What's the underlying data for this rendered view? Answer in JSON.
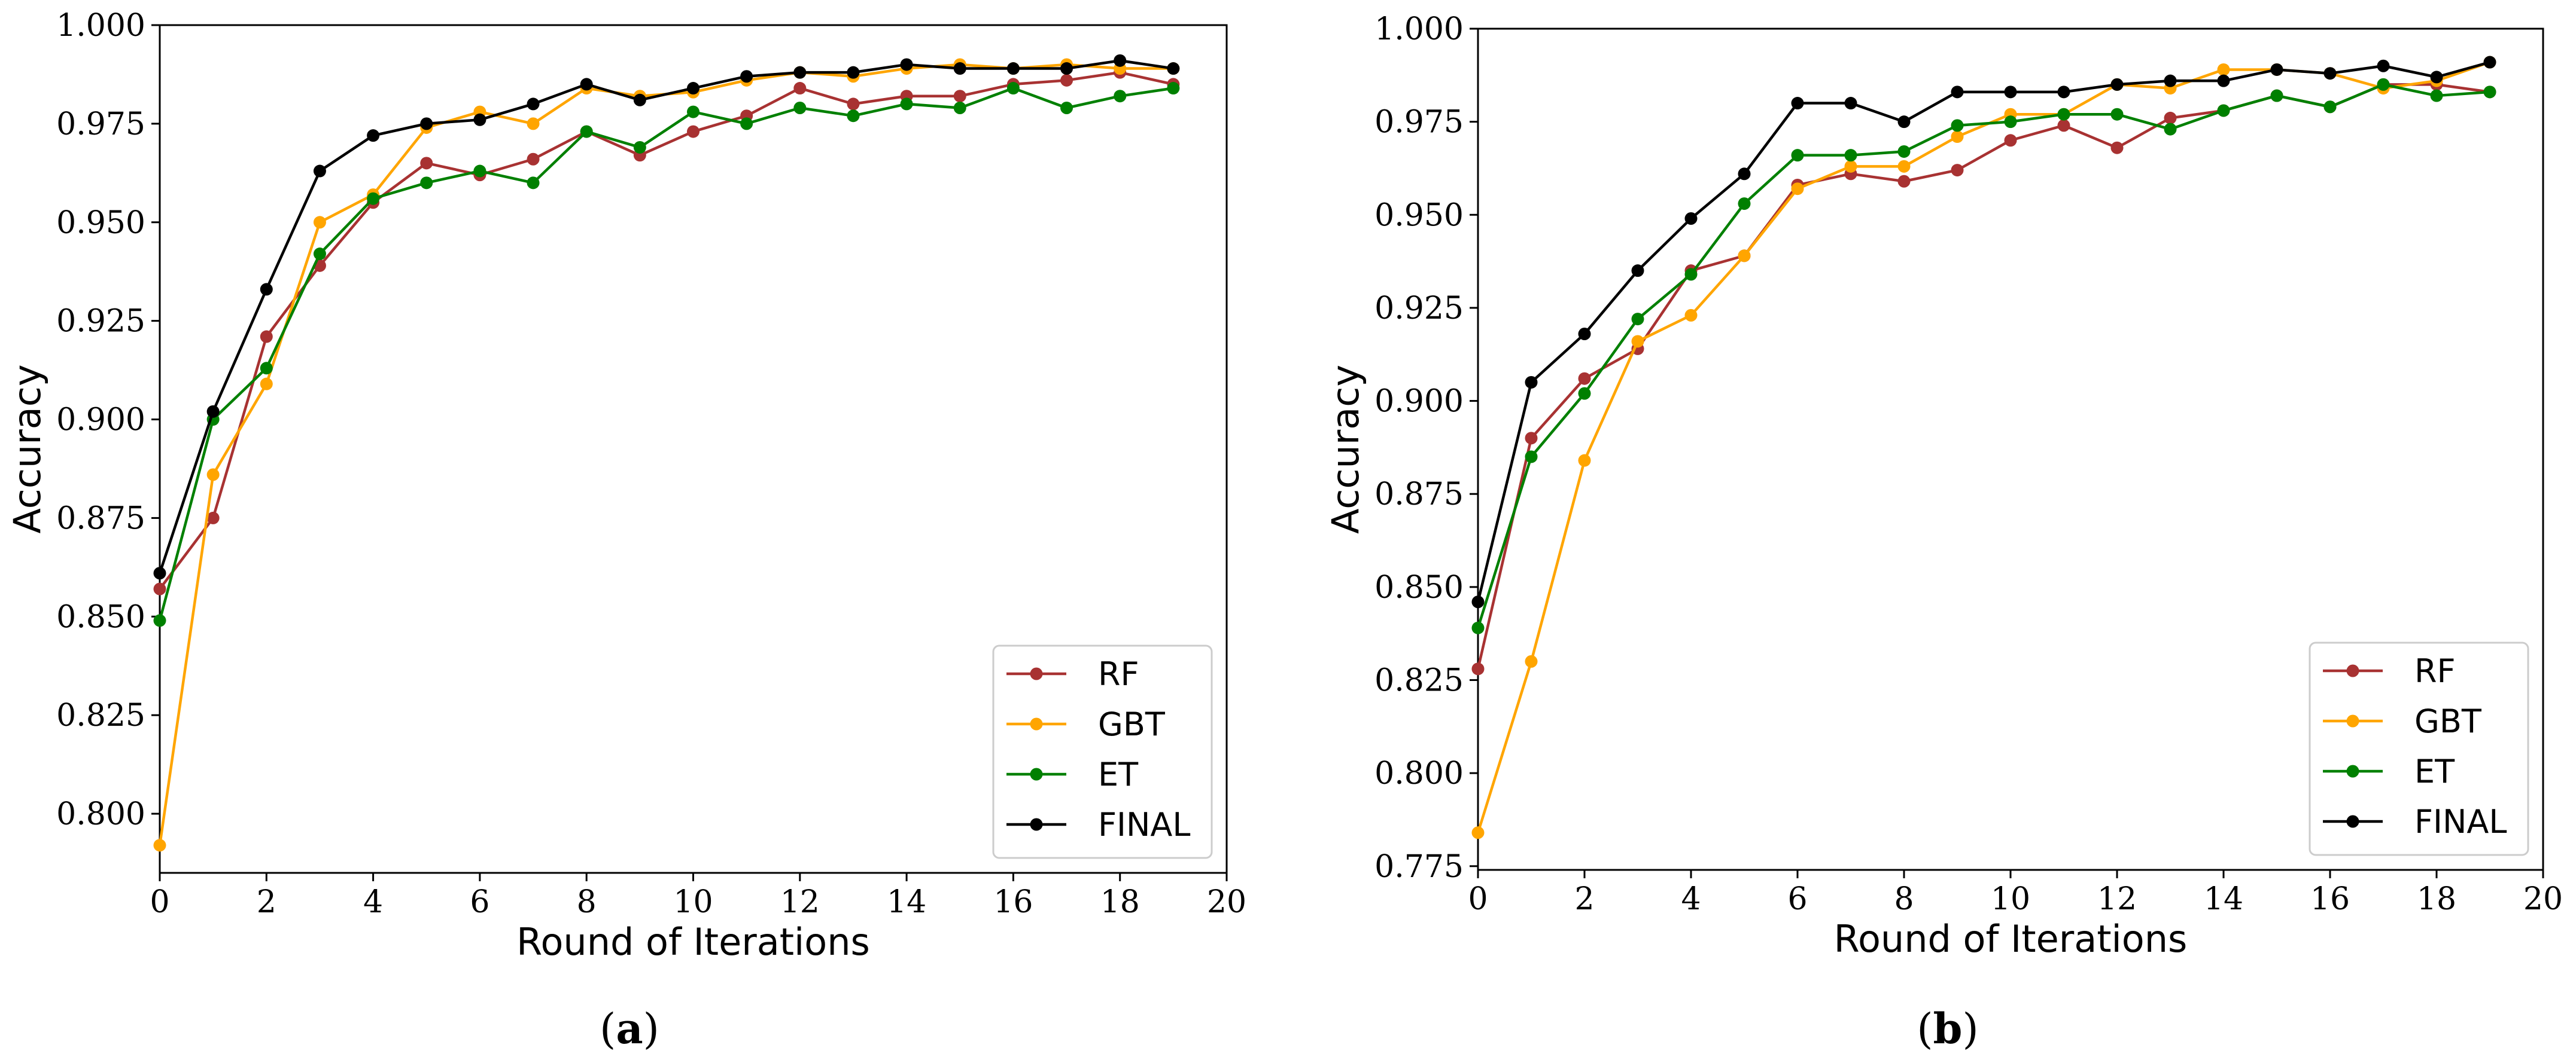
{
  "chart_data": [
    {
      "type": "line",
      "caption_open": "(",
      "caption_letter": "a",
      "caption_close": ")",
      "xlabel": "Round of Iterations",
      "ylabel": "Accuracy",
      "xlim": [
        0,
        20
      ],
      "ylim": [
        0.785,
        1.0
      ],
      "xticks": [
        0,
        2,
        4,
        6,
        8,
        10,
        12,
        14,
        16,
        18,
        20
      ],
      "xtick_labels": [
        "0",
        "2",
        "4",
        "6",
        "8",
        "10",
        "12",
        "14",
        "16",
        "18",
        "20"
      ],
      "yticks": [
        0.8,
        0.825,
        0.85,
        0.875,
        0.9,
        0.925,
        0.95,
        0.975,
        1.0
      ],
      "ytick_labels": [
        "0.800",
        "0.825",
        "0.850",
        "0.875",
        "0.900",
        "0.925",
        "0.950",
        "0.975",
        "1.000"
      ],
      "legend_position": "lower-right",
      "x": [
        0,
        1,
        2,
        3,
        4,
        5,
        6,
        7,
        8,
        9,
        10,
        11,
        12,
        13,
        14,
        15,
        16,
        17,
        18,
        19
      ],
      "series": [
        {
          "name": "RF",
          "color": "#a83232",
          "values": [
            0.857,
            0.875,
            0.921,
            0.939,
            0.955,
            0.965,
            0.962,
            0.966,
            0.973,
            0.967,
            0.973,
            0.977,
            0.984,
            0.98,
            0.982,
            0.982,
            0.985,
            0.986,
            0.988,
            0.985
          ]
        },
        {
          "name": "GBT",
          "color": "#ffa500",
          "values": [
            0.792,
            0.886,
            0.909,
            0.95,
            0.957,
            0.974,
            0.978,
            0.975,
            0.984,
            0.982,
            0.983,
            0.986,
            0.988,
            0.987,
            0.989,
            0.99,
            0.989,
            0.99,
            0.989,
            0.989
          ]
        },
        {
          "name": "ET",
          "color": "#008000",
          "values": [
            0.849,
            0.9,
            0.913,
            0.942,
            0.956,
            0.96,
            0.963,
            0.96,
            0.973,
            0.969,
            0.978,
            0.975,
            0.979,
            0.977,
            0.98,
            0.979,
            0.984,
            0.979,
            0.982,
            0.984
          ]
        },
        {
          "name": "FINAL",
          "color": "#000000",
          "values": [
            0.861,
            0.902,
            0.933,
            0.963,
            0.972,
            0.975,
            0.976,
            0.98,
            0.985,
            0.981,
            0.984,
            0.987,
            0.988,
            0.988,
            0.99,
            0.989,
            0.989,
            0.989,
            0.991,
            0.989
          ]
        }
      ]
    },
    {
      "type": "line",
      "caption_open": "(",
      "caption_letter": "b",
      "caption_close": ")",
      "xlabel": "Round of Iterations",
      "ylabel": "Accuracy",
      "xlim": [
        0,
        20
      ],
      "ylim": [
        0.774,
        1.0
      ],
      "xticks": [
        0,
        2,
        4,
        6,
        8,
        10,
        12,
        14,
        16,
        18,
        20
      ],
      "xtick_labels": [
        "0",
        "2",
        "4",
        "6",
        "8",
        "10",
        "12",
        "14",
        "16",
        "18",
        "20"
      ],
      "yticks": [
        0.775,
        0.8,
        0.825,
        0.85,
        0.875,
        0.9,
        0.925,
        0.95,
        0.975,
        1.0
      ],
      "ytick_labels": [
        "0.775",
        "0.800",
        "0.825",
        "0.850",
        "0.875",
        "0.900",
        "0.925",
        "0.950",
        "0.975",
        "1.000"
      ],
      "legend_position": "lower-right",
      "x": [
        0,
        1,
        2,
        3,
        4,
        5,
        6,
        7,
        8,
        9,
        10,
        11,
        12,
        13,
        14,
        15,
        16,
        17,
        18,
        19
      ],
      "series": [
        {
          "name": "RF",
          "color": "#a83232",
          "values": [
            0.828,
            0.89,
            0.906,
            0.914,
            0.935,
            0.939,
            0.958,
            0.961,
            0.959,
            0.962,
            0.97,
            0.974,
            0.968,
            0.976,
            0.978,
            0.982,
            0.979,
            0.985,
            0.985,
            0.983
          ]
        },
        {
          "name": "GBT",
          "color": "#ffa500",
          "values": [
            0.784,
            0.83,
            0.884,
            0.916,
            0.923,
            0.939,
            0.957,
            0.963,
            0.963,
            0.971,
            0.977,
            0.977,
            0.985,
            0.984,
            0.989,
            0.989,
            0.988,
            0.984,
            0.986,
            0.991
          ]
        },
        {
          "name": "ET",
          "color": "#008000",
          "values": [
            0.839,
            0.885,
            0.902,
            0.922,
            0.934,
            0.953,
            0.966,
            0.966,
            0.967,
            0.974,
            0.975,
            0.977,
            0.977,
            0.973,
            0.978,
            0.982,
            0.979,
            0.985,
            0.982,
            0.983
          ]
        },
        {
          "name": "FINAL",
          "color": "#000000",
          "values": [
            0.846,
            0.905,
            0.918,
            0.935,
            0.949,
            0.961,
            0.98,
            0.98,
            0.975,
            0.983,
            0.983,
            0.983,
            0.985,
            0.986,
            0.986,
            0.989,
            0.988,
            0.99,
            0.987,
            0.991
          ]
        }
      ]
    }
  ]
}
